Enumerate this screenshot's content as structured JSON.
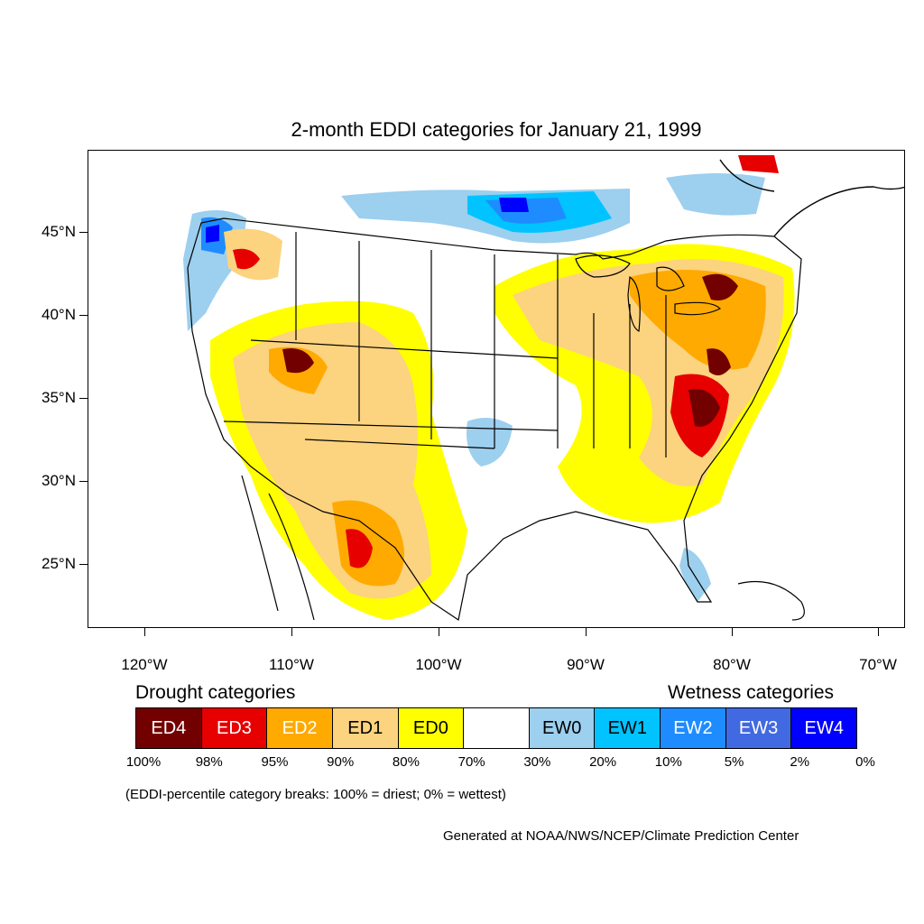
{
  "title": "2-month EDDI categories for January 21, 1999",
  "lat_labels": [
    "45°N",
    "40°N",
    "35°N",
    "30°N",
    "25°N"
  ],
  "lon_labels": [
    "120°W",
    "110°W",
    "100°W",
    "90°W",
    "80°W",
    "70°W"
  ],
  "legend": {
    "drought_heading": "Drought categories",
    "wetness_heading": "Wetness categories",
    "categories": [
      {
        "label": "ED4",
        "color": "#730000",
        "text_color": "#ffffff"
      },
      {
        "label": "ED3",
        "color": "#e60000",
        "text_color": "#ffffff"
      },
      {
        "label": "ED2",
        "color": "#ffaa00",
        "text_color": "#ffffff"
      },
      {
        "label": "ED1",
        "color": "#fcd37f",
        "text_color": "#000000"
      },
      {
        "label": "ED0",
        "color": "#ffff00",
        "text_color": "#000000"
      },
      {
        "label": "",
        "color": "#ffffff",
        "text_color": "#000000"
      },
      {
        "label": "EW0",
        "color": "#9dcfee",
        "text_color": "#000000"
      },
      {
        "label": "EW1",
        "color": "#00c3ff",
        "text_color": "#000000"
      },
      {
        "label": "EW2",
        "color": "#1e8cff",
        "text_color": "#ffffff"
      },
      {
        "label": "EW3",
        "color": "#4169e1",
        "text_color": "#ffffff"
      },
      {
        "label": "EW4",
        "color": "#0000ff",
        "text_color": "#ffffff"
      }
    ],
    "percentiles": [
      "100%",
      "98%",
      "95%",
      "90%",
      "80%",
      "70%",
      "30%",
      "20%",
      "10%",
      "5%",
      "2%",
      "0%"
    ],
    "note": "(EDDI-percentile category breaks: 100% = driest; 0% = wettest)"
  },
  "credit": "Generated at NOAA/NWS/NCEP/Climate Prediction Center"
}
